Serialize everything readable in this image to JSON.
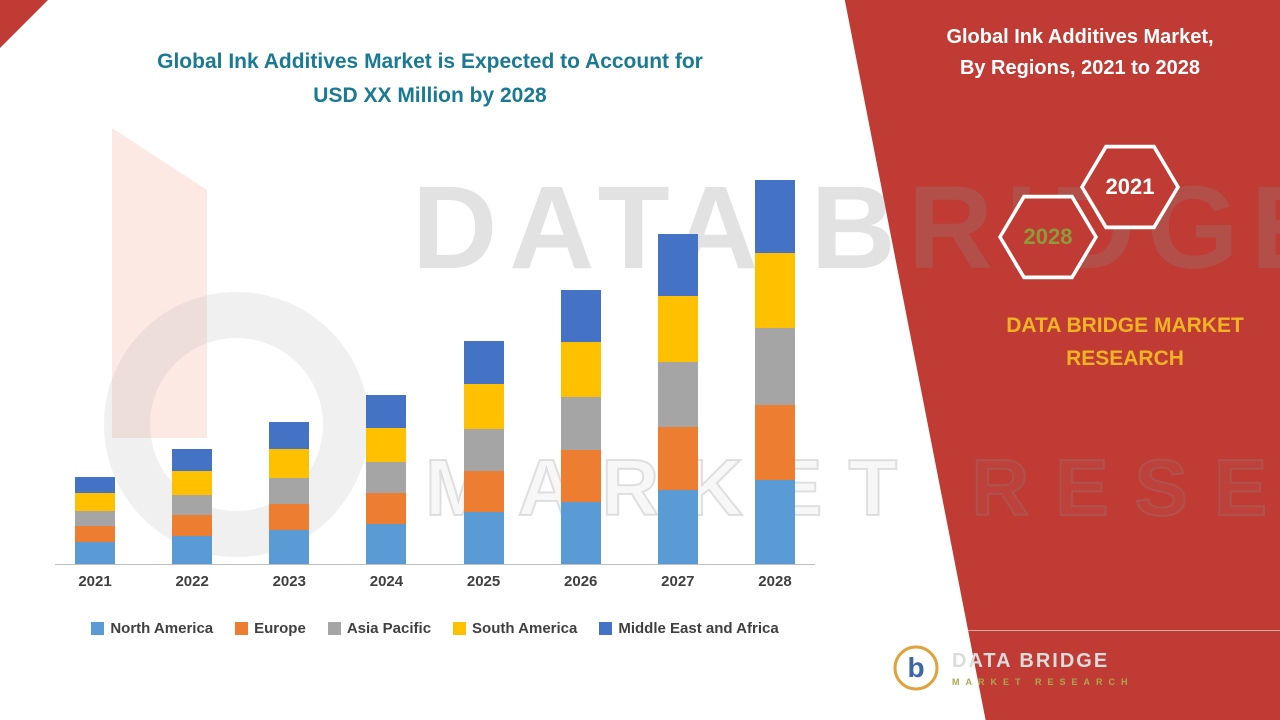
{
  "header": {
    "title_line1": "Global Ink Additives Market is Expected to Account for",
    "title_line2": "USD XX Million by 2028"
  },
  "right_panel": {
    "bg_color": "#BF3B33",
    "title_line1": "Global Ink Additives Market,",
    "title_line2": "By Regions, 2021 to 2028",
    "hexagons": [
      {
        "label": "2028",
        "text_color": "#8F9A3A"
      },
      {
        "label": "2021",
        "text_color": "#FFFFFF"
      }
    ],
    "brand_line1": "DATA BRIDGE MARKET",
    "brand_line2": "RESEARCH",
    "brand_color": "#F0B323",
    "logo": {
      "name": "DATA BRIDGE",
      "tagline": "MARKET RESEARCH"
    }
  },
  "watermark": {
    "line1": "DATA BRIDGE",
    "line2": "MARKET RESEARCH"
  },
  "chart_data": {
    "type": "bar",
    "stacked": true,
    "title": "Global Ink Additives Market is Expected to Account for USD XX Million by 2028",
    "xlabel": "",
    "ylabel": "",
    "categories": [
      "2021",
      "2022",
      "2023",
      "2024",
      "2025",
      "2026",
      "2027",
      "2028"
    ],
    "series": [
      {
        "name": "North America",
        "color": "#5B9BD5",
        "values": [
          22,
          28,
          34,
          40,
          52,
          62,
          74,
          84
        ]
      },
      {
        "name": "Europe",
        "color": "#ED7D31",
        "values": [
          16,
          21,
          26,
          31,
          41,
          52,
          63,
          75
        ]
      },
      {
        "name": "Asia Pacific",
        "color": "#A5A5A5",
        "values": [
          15,
          20,
          26,
          31,
          42,
          53,
          65,
          77
        ]
      },
      {
        "name": "South America",
        "color": "#FFC000",
        "values": [
          18,
          24,
          29,
          34,
          45,
          55,
          66,
          75
        ]
      },
      {
        "name": "Middle East and Africa",
        "color": "#4472C4",
        "values": [
          16,
          22,
          27,
          33,
          43,
          52,
          62,
          73
        ]
      }
    ],
    "ylim": [
      0,
      400
    ],
    "grid": false,
    "legend_position": "bottom"
  }
}
